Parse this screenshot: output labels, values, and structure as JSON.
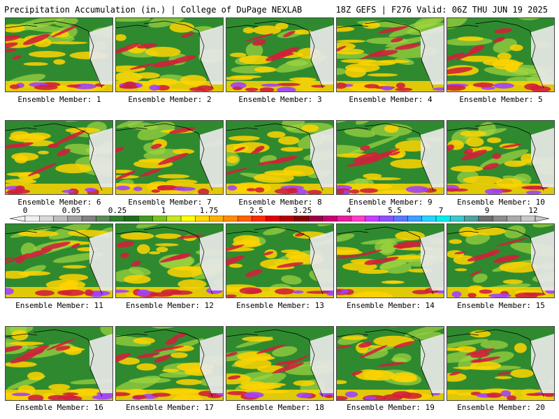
{
  "header": {
    "title": "Precipitation Accumulation (in.) | College of DuPage NEXLAB",
    "run_info": "18Z GEFS | F276 Valid: 06Z THU JUN 19 2025"
  },
  "panels": [
    {
      "label": "Ensemble Member: 1"
    },
    {
      "label": "Ensemble Member: 2"
    },
    {
      "label": "Ensemble Member: 3"
    },
    {
      "label": "Ensemble Member: 4"
    },
    {
      "label": "Ensemble Member: 5"
    },
    {
      "label": "Ensemble Member: 6"
    },
    {
      "label": "Ensemble Member: 7"
    },
    {
      "label": "Ensemble Member: 8"
    },
    {
      "label": "Ensemble Member: 9"
    },
    {
      "label": "Ensemble Member: 10"
    },
    {
      "label": "Ensemble Member: 11"
    },
    {
      "label": "Ensemble Member: 12"
    },
    {
      "label": "Ensemble Member: 13"
    },
    {
      "label": "Ensemble Member: 14"
    },
    {
      "label": "Ensemble Member: 15"
    },
    {
      "label": "Ensemble Member: 16"
    },
    {
      "label": "Ensemble Member: 17"
    },
    {
      "label": "Ensemble Member: 18"
    },
    {
      "label": "Ensemble Member: 19"
    },
    {
      "label": "Ensemble Member: 20"
    }
  ],
  "colorbar": {
    "labels": [
      "0",
      "0.05",
      "0.25",
      "1",
      "1.75",
      "2.5",
      "3.25",
      "4",
      "5.5",
      "7",
      "9",
      "12"
    ],
    "colors": [
      "#f0f0f0",
      "#d8d8d8",
      "#bdbdbd",
      "#a0a0a0",
      "#808080",
      "#5a8a5a",
      "#2e7d2e",
      "#1f6b1f",
      "#3f9a1f",
      "#7cc21a",
      "#c8e61e",
      "#ffff00",
      "#ffd700",
      "#ffb000",
      "#ff8c00",
      "#ff6000",
      "#ff2a00",
      "#e00000",
      "#b40000",
      "#8c0000",
      "#a00040",
      "#c8006e",
      "#e61e9c",
      "#ff3cc8",
      "#c83cff",
      "#8c50ff",
      "#5a78ff",
      "#3ca0ff",
      "#28d2ff",
      "#00f0f0",
      "#3cc8c8",
      "#50a0a0",
      "#6e6e6e",
      "#8c8c8c",
      "#aaaaaa",
      "#c8c8c8"
    ]
  },
  "colors": {
    "ocean": "#2f8a2f",
    "land_dry": "#e8e8e8",
    "heavy": "#d0203a",
    "moderate": "#ffd400",
    "light": "#9fd640",
    "extreme": "#a040ff",
    "coast": "#000000"
  }
}
